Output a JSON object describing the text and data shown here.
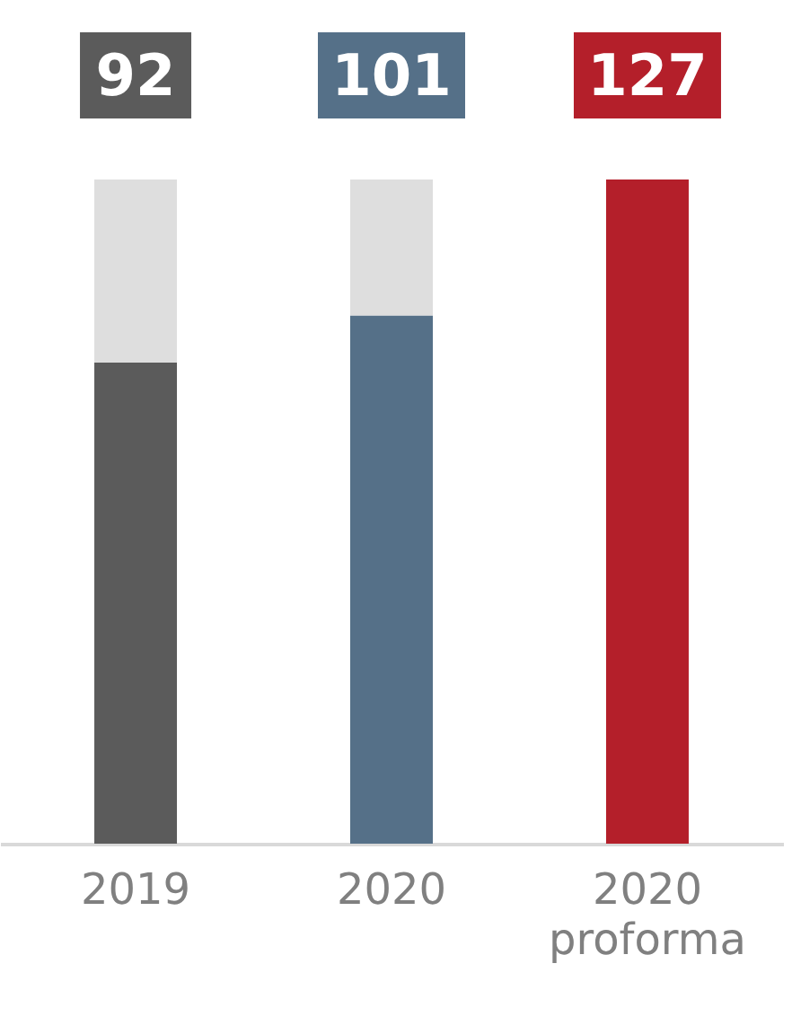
{
  "chart_data": {
    "type": "bar",
    "stacked": true,
    "categories": [
      "2019",
      "2020",
      "2020 proforma"
    ],
    "series": [
      {
        "colors": [
          "#5b5b5b",
          "#557088",
          "#b41f2a"
        ],
        "values": [
          92,
          101,
          127
        ],
        "value_labels": [
          "92",
          "101",
          "127"
        ]
      },
      {
        "color": "#dedede",
        "values": [
          35,
          26,
          0
        ]
      }
    ]
  }
}
